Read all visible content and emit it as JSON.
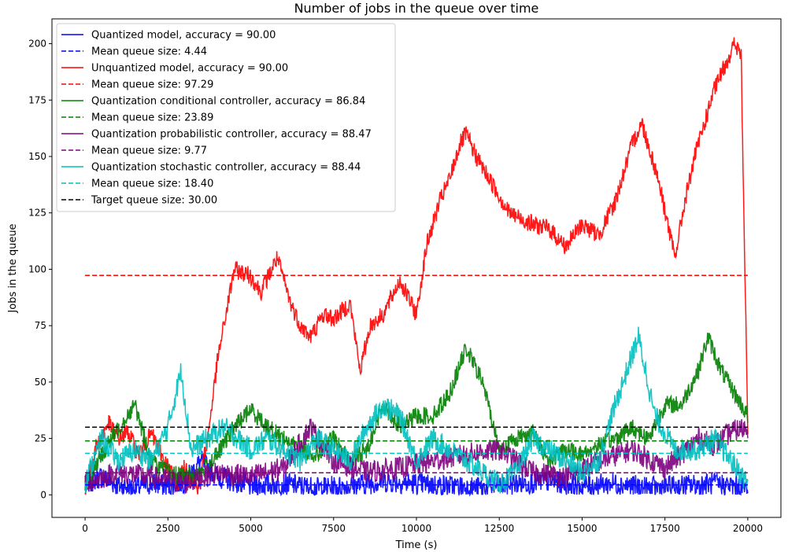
{
  "chart_data": {
    "type": "line",
    "title": "Number of jobs in the queue over time",
    "xlabel": "Time (s)",
    "ylabel": "Jobs in the queue",
    "xlim": [
      -1000,
      21000
    ],
    "ylim": [
      -10,
      211
    ],
    "xticks": [
      0,
      2500,
      5000,
      7500,
      10000,
      12500,
      15000,
      17500,
      20000
    ],
    "yticks": [
      0,
      25,
      50,
      75,
      100,
      125,
      150,
      175,
      200
    ],
    "legend_position": "top-left",
    "series": [
      {
        "name": "Quantized model, accuracy = 90.00",
        "style": "solid",
        "color": "#0000ff",
        "noise": 5,
        "x": [
          0,
          500,
          1000,
          1500,
          2000,
          2500,
          3000,
          3500,
          4000,
          5000,
          6000,
          7000,
          8000,
          9000,
          10000,
          11000,
          12000,
          13000,
          14000,
          15000,
          16000,
          17000,
          18000,
          19000,
          20000
        ],
        "y": [
          5,
          8,
          4,
          3,
          5,
          4,
          6,
          15,
          8,
          4,
          5,
          3,
          4,
          6,
          5,
          4,
          3,
          5,
          6,
          4,
          5,
          3,
          4,
          5,
          3
        ]
      },
      {
        "name": "Mean queue size: 4.44",
        "style": "dashed",
        "color": "#0000ff",
        "x": [
          0,
          20000
        ],
        "y": [
          4.44,
          4.44
        ]
      },
      {
        "name": "Unquantized model, accuracy = 90.00",
        "style": "solid",
        "color": "#ff0000",
        "noise": 4,
        "x": [
          0,
          300,
          700,
          1000,
          1300,
          1600,
          2000,
          2400,
          2800,
          3000,
          3400,
          3700,
          4000,
          4500,
          5000,
          5300,
          5800,
          6200,
          6500,
          6800,
          7200,
          7500,
          8000,
          8300,
          8600,
          9000,
          9500,
          10000,
          10300,
          10700,
          11000,
          11300,
          11500,
          11800,
          12200,
          12800,
          13500,
          14000,
          14500,
          15000,
          15500,
          16000,
          16500,
          16800,
          17300,
          17800,
          18100,
          18400,
          18700,
          19000,
          19300,
          19600,
          19800,
          19850,
          20000
        ],
        "y": [
          0,
          20,
          32,
          25,
          28,
          18,
          27,
          15,
          5,
          12,
          3,
          25,
          60,
          100,
          97,
          90,
          105,
          85,
          75,
          70,
          80,
          78,
          85,
          55,
          75,
          80,
          95,
          80,
          110,
          130,
          140,
          155,
          160,
          150,
          140,
          125,
          120,
          118,
          110,
          120,
          115,
          130,
          155,
          165,
          140,
          105,
          130,
          150,
          165,
          180,
          190,
          200,
          195,
          150,
          30
        ]
      },
      {
        "name": "Mean queue size: 97.29",
        "style": "dashed",
        "color": "#ff0000",
        "x": [
          0,
          20000
        ],
        "y": [
          97.29,
          97.29
        ]
      },
      {
        "name": "Quantization conditional controller, accuracy = 86.84",
        "style": "solid",
        "color": "#008000",
        "noise": 4,
        "x": [
          0,
          800,
          1500,
          2000,
          2500,
          3000,
          3500,
          4000,
          4500,
          5000,
          5500,
          6000,
          6500,
          7000,
          7500,
          8000,
          8500,
          9000,
          9500,
          10000,
          10500,
          11000,
          11500,
          12000,
          12500,
          13000,
          13500,
          14000,
          14500,
          15000,
          15500,
          16000,
          16500,
          17000,
          17500,
          18000,
          18500,
          18800,
          19200,
          19600,
          20000
        ],
        "y": [
          5,
          25,
          40,
          15,
          10,
          8,
          10,
          18,
          30,
          38,
          30,
          25,
          20,
          18,
          25,
          15,
          20,
          40,
          30,
          35,
          35,
          45,
          65,
          50,
          20,
          25,
          28,
          15,
          20,
          18,
          22,
          25,
          30,
          25,
          40,
          40,
          55,
          70,
          55,
          45,
          35
        ]
      },
      {
        "name": "Mean queue size: 23.89",
        "style": "dashed",
        "color": "#008000",
        "x": [
          0,
          20000
        ],
        "y": [
          23.89,
          23.89
        ]
      },
      {
        "name": "Quantization probabilistic controller, accuracy = 88.47",
        "style": "solid",
        "color": "#800080",
        "noise": 5,
        "x": [
          0,
          1000,
          2000,
          3000,
          4000,
          5000,
          6000,
          6800,
          7500,
          8500,
          9500,
          10500,
          11500,
          12500,
          13500,
          14500,
          15500,
          16500,
          17500,
          18000,
          18500,
          19000,
          19500,
          20000
        ],
        "y": [
          5,
          10,
          8,
          5,
          10,
          8,
          12,
          30,
          15,
          10,
          12,
          15,
          18,
          20,
          10,
          8,
          15,
          20,
          12,
          18,
          25,
          22,
          28,
          30
        ]
      },
      {
        "name": "Mean queue size: 9.77",
        "style": "dashed",
        "color": "#800080",
        "x": [
          0,
          20000
        ],
        "y": [
          9.77,
          9.77
        ]
      },
      {
        "name": "Quantization stochastic controller, accuracy = 88.44",
        "style": "solid",
        "color": "#00bfbf",
        "noise": 5,
        "x": [
          0,
          500,
          1000,
          1500,
          2000,
          2500,
          2900,
          3200,
          3700,
          4200,
          5000,
          5500,
          6000,
          6500,
          7000,
          7500,
          8000,
          8500,
          9000,
          9500,
          10000,
          10500,
          11000,
          11500,
          12000,
          12500,
          13000,
          13500,
          14000,
          14500,
          15000,
          15500,
          16000,
          16700,
          17200,
          17800,
          18500,
          19000,
          19500,
          20000
        ],
        "y": [
          5,
          25,
          15,
          20,
          15,
          30,
          55,
          20,
          25,
          30,
          20,
          25,
          20,
          15,
          25,
          20,
          15,
          30,
          40,
          35,
          15,
          25,
          20,
          15,
          10,
          5,
          10,
          25,
          20,
          15,
          10,
          15,
          40,
          70,
          35,
          20,
          20,
          25,
          15,
          5
        ]
      },
      {
        "name": "Mean queue size: 18.40",
        "style": "dashed",
        "color": "#00bfbf",
        "x": [
          0,
          20000
        ],
        "y": [
          18.4,
          18.4
        ]
      },
      {
        "name": "Target queue size: 30.00",
        "style": "dashed",
        "color": "#000000",
        "x": [
          0,
          20000
        ],
        "y": [
          30.0,
          30.0
        ]
      }
    ]
  }
}
